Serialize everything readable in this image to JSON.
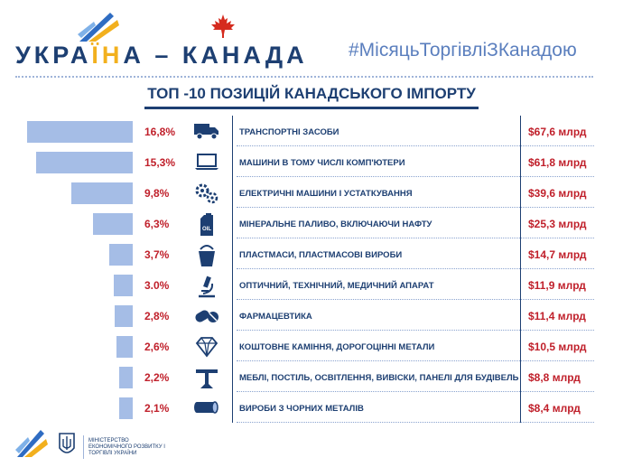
{
  "header": {
    "title_part1": "УКРА",
    "title_accent": "ЇН",
    "title_part2": "А – КАНАДА",
    "hashtag": "#МісяцьТоргівліЗКанадою"
  },
  "chart_data": {
    "type": "bar",
    "title": "ТОП -10 ПОЗИЦІЙ КАНАДСЬКОГО ІМПОРТУ",
    "categories": [
      "ТРАНСПОРТНІ ЗАСОБИ",
      "МАШИНИ В ТОМУ ЧИСЛІ КОМП'ЮТЕРИ",
      "ЕЛЕКТРИЧНІ МАШИНИ І УСТАТКУВАННЯ",
      "МІНЕРАЛЬНЕ ПАЛИВО, ВКЛЮЧАЮЧИ НАФТУ",
      "ПЛАСТМАСИ, ПЛАСТМАСОВІ ВИРОБИ",
      "ОПТИЧНИЙ, ТЕХНІЧНИЙ, МЕДИЧНИЙ АПАРАТ",
      "ФАРМАЦЕВТИКА",
      "КОШТОВНЕ КАМІННЯ, ДОРОГОЦІННІ МЕТАЛИ",
      "МЕБЛІ, ПОСТІЛЬ, ОСВІТЛЕННЯ, ВИВІСКИ, ПАНЕЛІ ДЛЯ БУДІВЕЛЬ",
      "ВИРОБИ З ЧОРНИХ МЕТАЛІВ"
    ],
    "values": [
      16.8,
      15.3,
      9.8,
      6.3,
      3.7,
      3.0,
      2.8,
      2.6,
      2.2,
      2.1
    ],
    "percent_labels": [
      "16,8%",
      "15,3%",
      "9,8%",
      "6,3%",
      "3,7%",
      "3.0%",
      "2,8%",
      "2,6%",
      "2,2%",
      "2,1%"
    ],
    "value_labels": [
      "$67,6 млрд",
      "$61,8 млрд",
      "$39,6 млрд",
      "$25,3 млрд",
      "$14,7 млрд",
      "$11,9 млрд",
      "$11,4 млрд",
      "$10,5 млрд",
      "$8,8 млрд",
      "$8,4 млрд"
    ],
    "icons": [
      "truck-icon",
      "laptop-icon",
      "gears-icon",
      "oil-canister-icon",
      "bucket-icon",
      "microscope-icon",
      "pills-icon",
      "diamond-icon",
      "table-icon",
      "pipe-icon"
    ],
    "bar_color": "#a5bde6",
    "orientation": "horizontal",
    "bar_direction": "right-to-left"
  },
  "footer": {
    "ministry": "МІНІСТЕРСТВО ЕКОНОМІЧНОГО РОЗВИТКУ І ТОРГІВЛІ УКРАЇНИ"
  },
  "colors": {
    "navy": "#1d3f72",
    "red": "#c0202b",
    "accent_yellow": "#f2b01e",
    "hashtag_blue": "#5b7fbe",
    "maple_red": "#d52b1e"
  }
}
